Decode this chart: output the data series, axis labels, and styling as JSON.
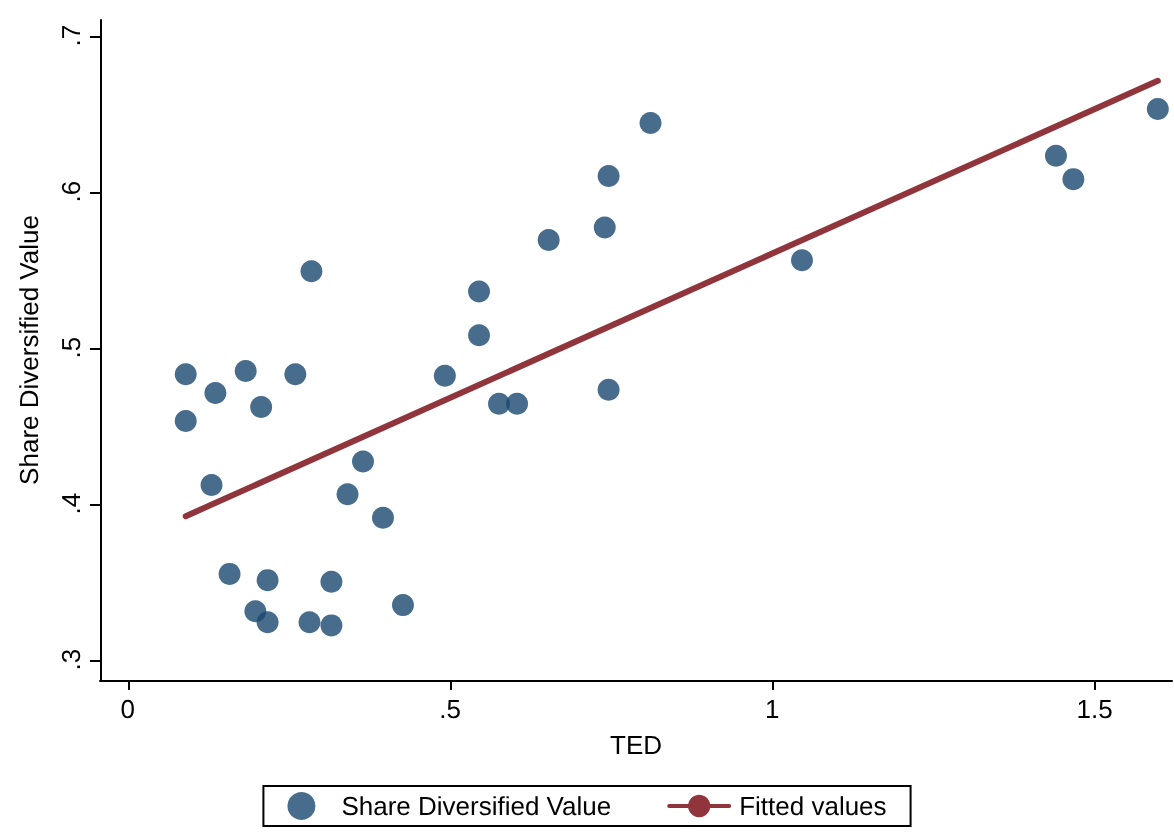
{
  "chart_data": {
    "type": "scatter",
    "xlabel": "TED",
    "ylabel": "Share Diversified Value",
    "xlim": [
      -0.043,
      1.62
    ],
    "ylim": [
      0.287,
      0.71
    ],
    "xticks": [
      0,
      {
        "value": 0.5,
        "label": ".5"
      },
      1,
      {
        "value": 1.5,
        "label": "1.5"
      }
    ],
    "yticks": [
      {
        "value": 0.3,
        "label": ".3"
      },
      {
        "value": 0.4,
        "label": ".4"
      },
      {
        "value": 0.5,
        "label": ".5"
      },
      {
        "value": 0.6,
        "label": ".6"
      },
      {
        "value": 0.7,
        "label": ".7"
      }
    ],
    "grid": false,
    "legend": "bottom",
    "marker": "circle",
    "series": [
      {
        "name": "Share Diversified Value",
        "color": "#1a476f",
        "x": [
          0.09,
          0.09,
          0.136,
          0.13,
          0.183,
          0.158,
          0.207,
          0.198,
          0.217,
          0.217,
          0.26,
          0.285,
          0.282,
          0.316,
          0.316,
          0.341,
          0.365,
          0.396,
          0.427,
          0.492,
          0.545,
          0.545,
          0.576,
          0.604,
          0.653,
          0.74,
          0.746,
          0.746,
          0.811,
          1.046,
          1.44,
          1.467,
          1.598
        ],
        "values": [
          0.483,
          0.453,
          0.471,
          0.412,
          0.485,
          0.355,
          0.462,
          0.331,
          0.351,
          0.324,
          0.483,
          0.549,
          0.324,
          0.322,
          0.35,
          0.406,
          0.427,
          0.391,
          0.335,
          0.482,
          0.536,
          0.508,
          0.464,
          0.464,
          0.569,
          0.577,
          0.61,
          0.473,
          0.644,
          0.556,
          0.623,
          0.608,
          0.653
        ]
      },
      {
        "name": "Fitted values",
        "type": "line",
        "color": "#90353b",
        "marker": "none",
        "line_style": "solid",
        "x": [
          0.09,
          1.598
        ],
        "values": [
          0.392,
          0.671
        ]
      }
    ]
  }
}
